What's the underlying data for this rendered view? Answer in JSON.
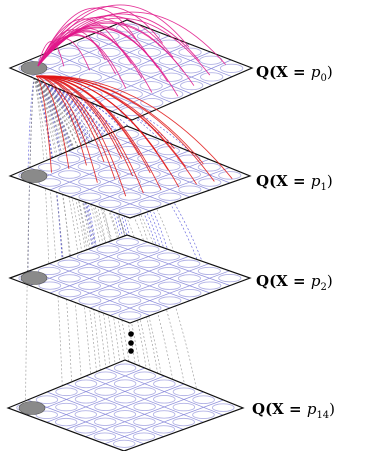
{
  "colors": {
    "plane_outline": "#111111",
    "grid_lines": "#8f8fdc",
    "circles": "#b3b3e6",
    "anchor_ellipse": "#8a8a8a",
    "arcs_p0": "#e0168a",
    "arcs_p1": "#e01515",
    "dashed_blue": "#4b4bd8",
    "dashed_gray": "#8c8c8c",
    "ellipsis_dots": "#000000"
  },
  "planes": [
    {
      "id": "p0",
      "label_prefix": "Q(X = ",
      "label_var": "p",
      "label_sub": "0",
      "label_suffix": ")"
    },
    {
      "id": "p1",
      "label_prefix": "Q(X = ",
      "label_var": "p",
      "label_sub": "1",
      "label_suffix": ")"
    },
    {
      "id": "p2",
      "label_prefix": "Q(X = ",
      "label_var": "p",
      "label_sub": "2",
      "label_suffix": ")"
    },
    {
      "id": "p14",
      "label_prefix": "Q(X = ",
      "label_var": "p",
      "label_sub": "14",
      "label_suffix": ")"
    }
  ],
  "ellipsis_icon": "vertical-ellipsis"
}
